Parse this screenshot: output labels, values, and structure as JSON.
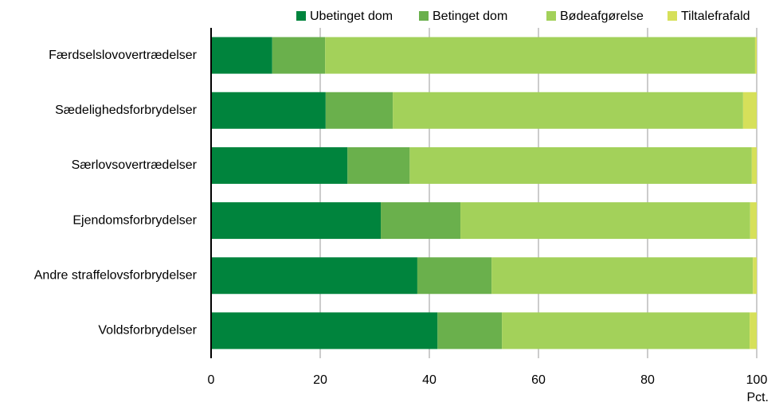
{
  "chart_data": {
    "type": "stacked_barh",
    "categories": [
      "Færdselslovovertrædelser",
      "Sædelighedsforbrydelser",
      "Særlovsovertrædelser",
      "Ejendomsforbrydelser",
      "Andre straffelovsforbrydelser",
      "Voldsforbrydelser"
    ],
    "series": [
      {
        "name": "Ubetinget dom",
        "color": "#00843d",
        "values": [
          11.2,
          21.0,
          25.0,
          31.1,
          37.8,
          41.5
        ]
      },
      {
        "name": "Betinget dom",
        "color": "#6ab04c",
        "values": [
          9.7,
          12.3,
          11.4,
          14.6,
          13.6,
          11.8
        ]
      },
      {
        "name": "Bødeafgørelse",
        "color": "#a3d15a",
        "values": [
          78.8,
          64.2,
          62.7,
          53.1,
          47.9,
          45.4
        ]
      },
      {
        "name": "Tiltalefrafald",
        "color": "#d6e05a",
        "values": [
          0.3,
          2.5,
          0.9,
          1.2,
          0.7,
          1.3
        ]
      }
    ],
    "xlim": [
      0,
      100
    ],
    "xticks": [
      0,
      20,
      40,
      60,
      80,
      100
    ],
    "x_label": "Pct.",
    "grid": true,
    "legend": "top"
  }
}
